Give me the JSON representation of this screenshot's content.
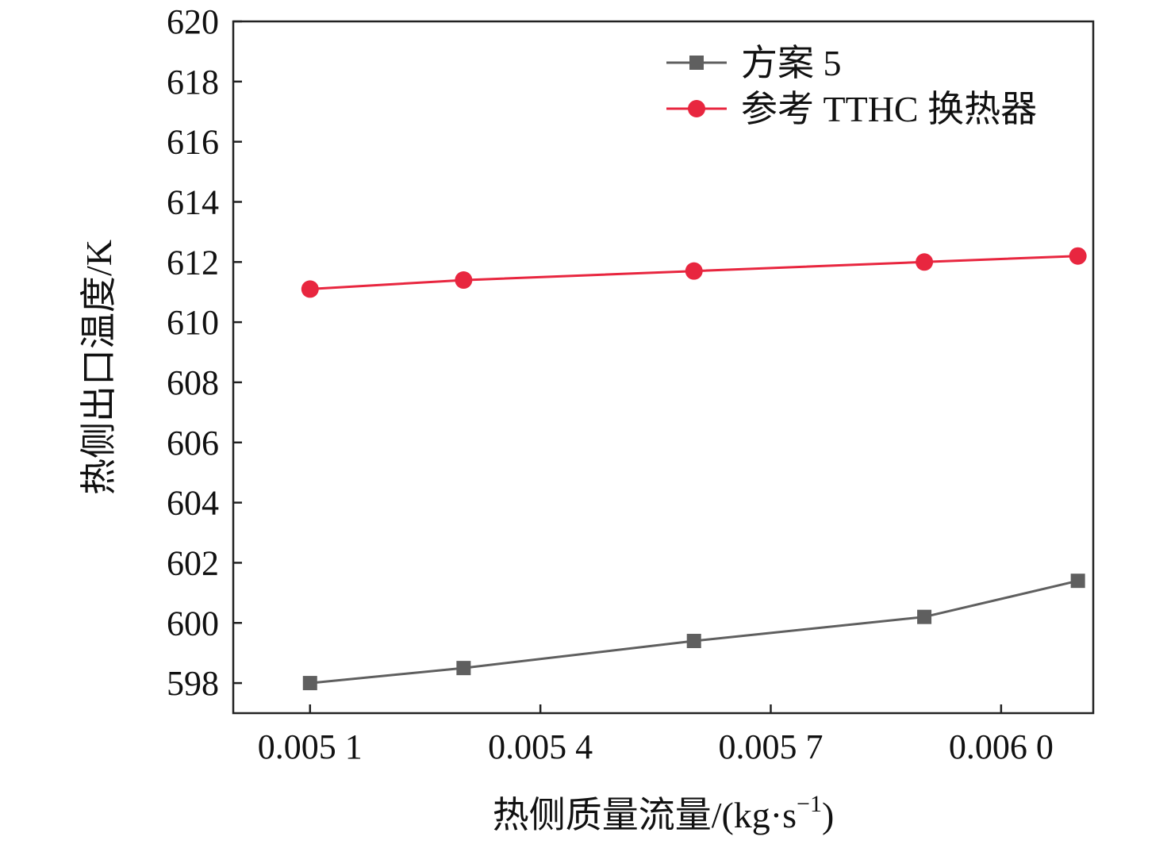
{
  "chart_data": {
    "type": "line",
    "title": "",
    "xlabel": "热侧质量流量/(kg·s",
    "xlabel_sup": "−1",
    "xlabel_tail": ")",
    "ylabel": "热侧出口温度/K",
    "xlim": [
      0.005,
      0.00612
    ],
    "ylim": [
      597,
      620
    ],
    "xticks": [
      0.0051,
      0.0054,
      0.0057,
      0.006
    ],
    "xtick_labels": [
      "0.005 1",
      "0.005 4",
      "0.005 7",
      "0.006 0"
    ],
    "yticks": [
      598,
      600,
      602,
      604,
      606,
      608,
      610,
      612,
      614,
      616,
      618,
      620
    ],
    "ytick_labels": [
      "598",
      "600",
      "602",
      "604",
      "606",
      "608",
      "610",
      "612",
      "614",
      "616",
      "618",
      "620"
    ],
    "grid": false,
    "legend_position": "top-right",
    "x": [
      0.0051,
      0.0053,
      0.0056,
      0.0059,
      0.0061
    ],
    "series": [
      {
        "name": "方案 5",
        "values": [
          598.0,
          598.5,
          599.4,
          600.2,
          601.4
        ],
        "color": "#5f5f5f",
        "marker": "square"
      },
      {
        "name": "参考 TTHC 换热器",
        "values": [
          611.1,
          611.4,
          611.7,
          612.0,
          612.2
        ],
        "color": "#e8263f",
        "marker": "circle"
      }
    ]
  }
}
